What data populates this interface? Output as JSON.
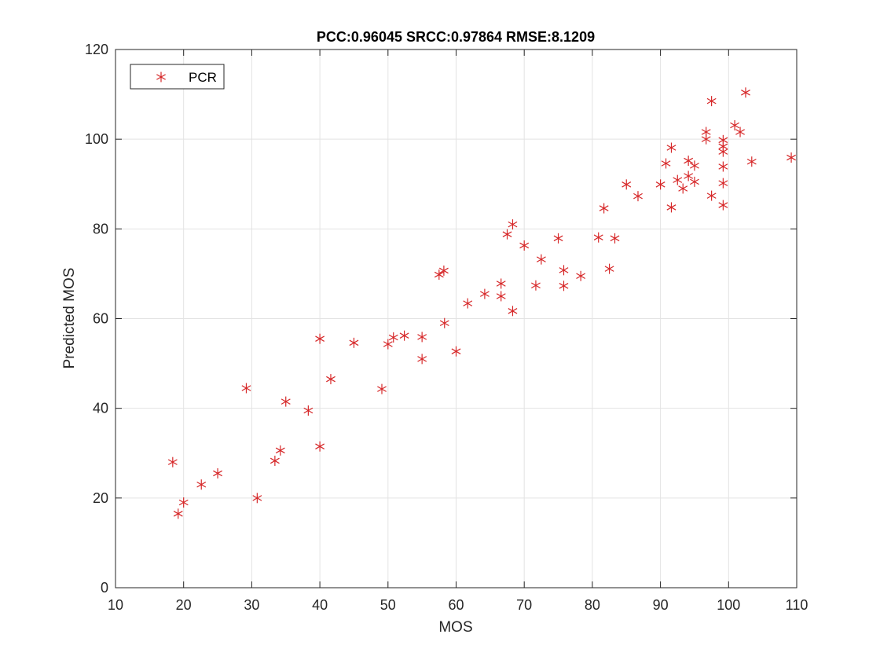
{
  "chart_data": {
    "type": "scatter",
    "title": "PCC:0.96045   SRCC:0.97864   RMSE:8.1209",
    "xlabel": "MOS",
    "ylabel": "Predicted MOS",
    "xlim": [
      10,
      110
    ],
    "ylim": [
      0,
      120
    ],
    "xticks": [
      10,
      20,
      30,
      40,
      50,
      60,
      70,
      80,
      90,
      100,
      110
    ],
    "yticks": [
      0,
      20,
      40,
      60,
      80,
      100,
      120
    ],
    "grid": true,
    "legend_position": "top-left",
    "series": [
      {
        "name": "PCR",
        "marker": "asterisk",
        "color": "#d62728",
        "points": [
          [
            18.4,
            28.0
          ],
          [
            19.2,
            16.5
          ],
          [
            20.0,
            19.0
          ],
          [
            22.6,
            23.0
          ],
          [
            25.0,
            25.5
          ],
          [
            29.2,
            44.5
          ],
          [
            30.8,
            20.0
          ],
          [
            33.4,
            28.3
          ],
          [
            34.2,
            30.6
          ],
          [
            35.0,
            41.5
          ],
          [
            38.3,
            39.5
          ],
          [
            40.0,
            31.5
          ],
          [
            40.0,
            55.5
          ],
          [
            41.6,
            46.5
          ],
          [
            45.0,
            54.6
          ],
          [
            49.1,
            44.3
          ],
          [
            50.0,
            54.3
          ],
          [
            50.8,
            55.8
          ],
          [
            52.4,
            56.2
          ],
          [
            55.0,
            51.0
          ],
          [
            55.0,
            55.9
          ],
          [
            57.5,
            69.8
          ],
          [
            58.2,
            70.7
          ],
          [
            58.3,
            59.0
          ],
          [
            60.0,
            52.7
          ],
          [
            61.7,
            63.4
          ],
          [
            64.2,
            65.5
          ],
          [
            66.6,
            65.0
          ],
          [
            66.6,
            67.8
          ],
          [
            67.5,
            78.8
          ],
          [
            68.3,
            81.0
          ],
          [
            68.3,
            61.7
          ],
          [
            70.0,
            76.3
          ],
          [
            71.7,
            67.4
          ],
          [
            72.5,
            73.2
          ],
          [
            75.0,
            77.9
          ],
          [
            75.8,
            70.8
          ],
          [
            75.8,
            67.3
          ],
          [
            78.3,
            69.5
          ],
          [
            80.9,
            78.1
          ],
          [
            81.7,
            84.6
          ],
          [
            82.5,
            71.1
          ],
          [
            83.3,
            77.9
          ],
          [
            85.0,
            89.9
          ],
          [
            86.7,
            87.3
          ],
          [
            90.0,
            89.9
          ],
          [
            90.8,
            94.6
          ],
          [
            91.6,
            84.8
          ],
          [
            91.6,
            98.1
          ],
          [
            92.5,
            90.9
          ],
          [
            93.3,
            89.0
          ],
          [
            94.1,
            95.2
          ],
          [
            94.1,
            91.8
          ],
          [
            95.0,
            94.1
          ],
          [
            95.0,
            90.5
          ],
          [
            96.7,
            101.6
          ],
          [
            96.7,
            100.0
          ],
          [
            97.5,
            108.5
          ],
          [
            97.5,
            87.4
          ],
          [
            99.2,
            99.8
          ],
          [
            99.2,
            97.2
          ],
          [
            99.2,
            98.4
          ],
          [
            99.2,
            93.9
          ],
          [
            99.2,
            90.2
          ],
          [
            99.2,
            85.3
          ],
          [
            100.9,
            103.1
          ],
          [
            101.7,
            101.6
          ],
          [
            102.5,
            110.4
          ],
          [
            103.4,
            95.0
          ],
          [
            109.2,
            95.9
          ]
        ]
      }
    ]
  }
}
